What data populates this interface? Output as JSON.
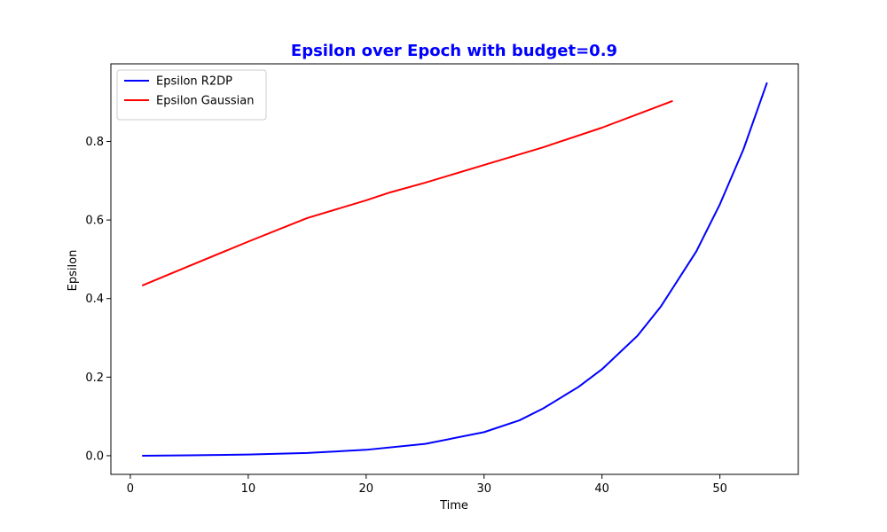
{
  "chart_data": {
    "type": "line",
    "title": "Epsilon over Epoch with budget=0.9",
    "title_color": "#0000ff",
    "xlabel": "Time",
    "ylabel": "Epsilon",
    "xlim": [
      -1.65,
      56.65
    ],
    "ylim": [
      -0.0475,
      0.9975
    ],
    "x_ticks": [
      0,
      10,
      20,
      30,
      40,
      50
    ],
    "y_ticks": [
      0.0,
      0.2,
      0.4,
      0.6,
      0.8
    ],
    "x_tick_labels": [
      "0",
      "10",
      "20",
      "30",
      "40",
      "50"
    ],
    "y_tick_labels": [
      "0.0",
      "0.2",
      "0.4",
      "0.6",
      "0.8"
    ],
    "grid": false,
    "legend_position": "top-left",
    "series": [
      {
        "name": "Epsilon R2DP",
        "color": "#0000ff",
        "x": [
          1,
          5,
          10,
          15,
          20,
          25,
          30,
          33,
          35,
          38,
          40,
          43,
          45,
          48,
          50,
          52,
          54
        ],
        "y": [
          0.0,
          0.001,
          0.003,
          0.007,
          0.015,
          0.03,
          0.06,
          0.09,
          0.12,
          0.175,
          0.22,
          0.305,
          0.38,
          0.52,
          0.64,
          0.78,
          0.95
        ]
      },
      {
        "name": "Epsilon Gaussian",
        "color": "#ff0000",
        "x": [
          1,
          5,
          10,
          15,
          20,
          22,
          25,
          30,
          35,
          40,
          46
        ],
        "y": [
          0.433,
          0.483,
          0.545,
          0.605,
          0.65,
          0.67,
          0.695,
          0.74,
          0.785,
          0.835,
          0.903
        ]
      }
    ]
  }
}
